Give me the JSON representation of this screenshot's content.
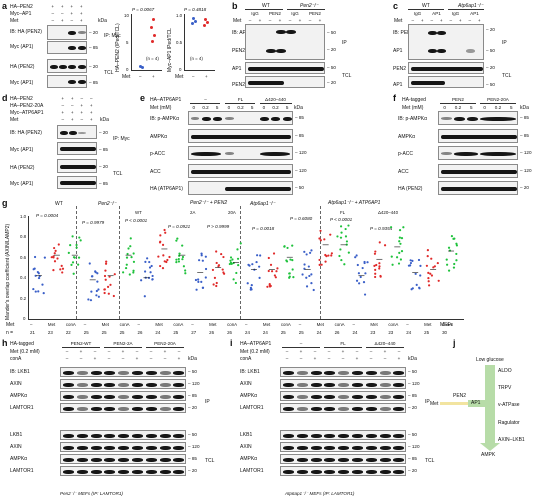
{
  "panels": {
    "a": {
      "label": "a",
      "header_rows": [
        {
          "label": "HA–PEN2",
          "marks": [
            "+",
            "+",
            "+",
            "+"
          ]
        },
        {
          "label": "Myc–AP1",
          "marks": [
            "–",
            "–",
            "+",
            "+"
          ]
        },
        {
          "label": "Met",
          "marks": [
            "–",
            "+",
            "–",
            "+"
          ]
        }
      ],
      "blots": [
        {
          "label": "IB: HA (PEN2)",
          "group": "IP: Myc"
        },
        {
          "label": "Myc (AP1)",
          "group": ""
        },
        {
          "label": "HA (PEN2)",
          "group": "TCL"
        },
        {
          "label": "Myc (AP1)",
          "group": ""
        }
      ],
      "markers": [
        "– 20",
        "– 85",
        "– 20",
        "– 85"
      ],
      "kda": "kDa",
      "chart1": {
        "ylabel": "HA–PEN2 (IPed/TCL)",
        "p": "P = 0.0067",
        "n": "(n = 4)",
        "met": "Met",
        "xmarks": [
          "–",
          "+"
        ],
        "yticks": [
          "0",
          "5",
          "10"
        ]
      },
      "chart2": {
        "ylabel": "Myc–AP1 IPed/TCL",
        "p": "P = 0.4818",
        "n": "(n = 4)",
        "met": "Met",
        "xmarks": [
          "–",
          "+"
        ],
        "yticks": [
          "0",
          "0.5",
          "1.0"
        ]
      }
    },
    "b": {
      "label": "b",
      "groups": [
        "WT",
        "Pen2⁻/⁻"
      ],
      "cols": [
        "IgG",
        "PEN2",
        "IgG",
        "PEN2"
      ],
      "met": [
        "–",
        "+",
        "–",
        "+",
        "–",
        "+",
        "–",
        "+"
      ],
      "blots": [
        "IB: AP1",
        "PEN2",
        "AP1",
        "PEN2"
      ],
      "markers": [
        "– 50",
        "– 20",
        "– 50",
        "– 20"
      ],
      "side": [
        "IP",
        "TCL"
      ]
    },
    "c": {
      "label": "c",
      "groups": [
        "WT",
        "Atp6ap1⁻/⁻"
      ],
      "cols": [
        "IgG",
        "AP1",
        "IgG",
        "AP1"
      ],
      "met": [
        "–",
        "+",
        "–",
        "+",
        "–",
        "+",
        "–",
        "+"
      ],
      "blots": [
        "IB: PEN2",
        "AP1",
        "PEN2",
        "AP1"
      ],
      "markers": [
        "– 20",
        "– 50",
        "– 20",
        "– 50"
      ],
      "side": [
        "IP",
        "TCL"
      ]
    },
    "d": {
      "label": "d",
      "header_rows": [
        {
          "label": "HA–PEN2",
          "marks": [
            "+",
            "+",
            "–",
            "–"
          ]
        },
        {
          "label": "HA–PEN2-20A",
          "marks": [
            "–",
            "–",
            "+",
            "+"
          ]
        },
        {
          "label": "Myc–ATP6AP1",
          "marks": [
            "+",
            "+",
            "+",
            "+"
          ]
        },
        {
          "label": "Met",
          "marks": [
            "–",
            "+",
            "–",
            "+"
          ]
        }
      ],
      "blots": [
        "IB: HA (PEN2)",
        "Myc (AP1)",
        "HA (PEN2)",
        "Myc (AP1)"
      ],
      "markers": [
        "– 20",
        "– 85",
        "– 20",
        "– 85"
      ],
      "side": [
        "IP: Myc",
        "TCL"
      ],
      "kda": "kDa"
    },
    "e": {
      "label": "e",
      "top": "HA–ATP6AP1",
      "groups": [
        "–",
        "FL",
        "Δ420–440"
      ],
      "met_label": "Met (mM)",
      "met": [
        "0",
        "0.2",
        "5",
        "0",
        "0.2",
        "5",
        "0",
        "0.2",
        "5"
      ],
      "blots": [
        "IB: p-AMPKα",
        "AMPKα",
        "p-ACC",
        "ACC",
        "HA (ATP6AP1)"
      ],
      "markers": [
        "– 85",
        "– 85",
        "– 120",
        "– 120",
        "– 50"
      ],
      "kda": "kDa"
    },
    "f": {
      "label": "f",
      "top": "HA-tagged",
      "groups": [
        "PEN2",
        "PEN2-20A"
      ],
      "met_label": "Met (mM)",
      "met": [
        "0",
        "0.2",
        "5",
        "0",
        "0.2",
        "5"
      ],
      "blots": [
        "IB: p-AMPKα",
        "AMPKα",
        "p-ACC",
        "ACC",
        "HA (PEN2)"
      ],
      "markers": [
        "– 85",
        "– 85",
        "– 120",
        "– 120",
        "– 20"
      ],
      "kda": "kDa"
    },
    "g": {
      "label": "g",
      "ylabel": "Mander's overlap coefficient (AXIN/LAMP2)",
      "yticks": [
        "0",
        "0.2",
        "0.4",
        "0.6",
        "0.8",
        "1.0"
      ],
      "groups": [
        {
          "title": "WT",
          "p": "P = 0.0004"
        },
        {
          "title": "Pen2⁻/⁻",
          "p": "P = 0.9979"
        },
        {
          "title": "Pen2⁻/⁻ + PEN2",
          "sub": [
            "WT",
            "2A",
            "20A"
          ],
          "p": [
            "P < 0.0001",
            "P = 0.0921",
            "P > 0.9999"
          ]
        },
        {
          "title": "Atp6ap1⁻/⁻",
          "p": "P = 0.0018"
        },
        {
          "title": "Atp6ap1⁻/⁻ + ATP6AP1",
          "sub": [
            "FL",
            "Δ420–440"
          ],
          "p": [
            "P < 0.0001",
            "P = 0.9354"
          ]
        }
      ],
      "extra_p": "P = 0.6080",
      "xcats": [
        "–",
        "Met",
        "conA",
        "–",
        "Met",
        "conA",
        "–",
        "Met",
        "conA",
        "–",
        "Met",
        "conA",
        "–",
        "Met",
        "conA",
        "–",
        "Met",
        "conA",
        "–",
        "Met",
        "conA",
        "–",
        "Met",
        "conA"
      ],
      "n": [
        "21",
        "23",
        "22",
        "25",
        "25",
        "25",
        "26",
        "24",
        "25",
        "27",
        "26",
        "26",
        "24",
        "24",
        "25",
        "25",
        "24",
        "26",
        "24",
        "23",
        "23",
        "24",
        "25",
        "30"
      ],
      "met_row": "Met",
      "n_row": "n =",
      "mefs": "MEFs"
    },
    "h": {
      "label": "h",
      "top": "HA-tagged",
      "groups": [
        "PEN2-WT",
        "PEN2-2A",
        "PEN2-20A"
      ],
      "met_label": "Met (0.2 mM)",
      "met": [
        "–",
        "+",
        "–",
        "–",
        "+",
        "–",
        "–",
        "+",
        "–"
      ],
      "cona_label": "conA",
      "cona": [
        "–",
        "–",
        "+",
        "–",
        "–",
        "+",
        "–",
        "–",
        "+"
      ],
      "blots": [
        "IB: LKB1",
        "AXIN",
        "AMPKα",
        "LAMTOR1",
        "LKB1",
        "AXIN",
        "AMPKα",
        "LAMTOR1"
      ],
      "markers": [
        "– 50",
        "– 120",
        "– 85",
        "– 20",
        "– 50",
        "– 120",
        "– 85",
        "– 20"
      ],
      "side": [
        "IP",
        "TCL"
      ],
      "caption": "Pen2⁻/⁻ MEFs (IP: LAMTOR1)",
      "kda": "kDa"
    },
    "i": {
      "label": "i",
      "top": "HA–ATP6AP1",
      "groups": [
        "–",
        "FL",
        "Δ420–440"
      ],
      "met_label": "Met (0.2 mM)",
      "met": [
        "–",
        "+",
        "–",
        "–",
        "+",
        "–",
        "–",
        "+",
        "–"
      ],
      "cona_label": "conA",
      "cona": [
        "–",
        "–",
        "+",
        "–",
        "–",
        "+",
        "–",
        "–",
        "+"
      ],
      "blots": [
        "IB: LKB1",
        "AXIN",
        "AMPKα",
        "LAMTOR1",
        "LKB1",
        "AXIN",
        "AMPKα",
        "LAMTOR1"
      ],
      "markers": [
        "– 50",
        "– 120",
        "– 85",
        "– 20",
        "– 50",
        "– 120",
        "– 85",
        "– 20"
      ],
      "side": [
        "IP",
        "TCL"
      ],
      "caption": "Atp6ap1⁻/⁻ MEFs (IP: LAMTOR1)",
      "kda": "kDa"
    },
    "j": {
      "label": "j",
      "title": "Low glucose",
      "chain": [
        "ALDO",
        "TRPV",
        "v-ATPase",
        "Ragulator",
        "AXIN–LKB1",
        "AMPK"
      ],
      "met": "Met",
      "pen2": "PEN2",
      "ap1": "AP1"
    }
  },
  "colors": {
    "wt": "#3a5fc8",
    "met": "#e02a2a",
    "cona": "#1fc23c",
    "met_blue": "#3a5fc8",
    "arrow_green": "#b7dca8"
  }
}
